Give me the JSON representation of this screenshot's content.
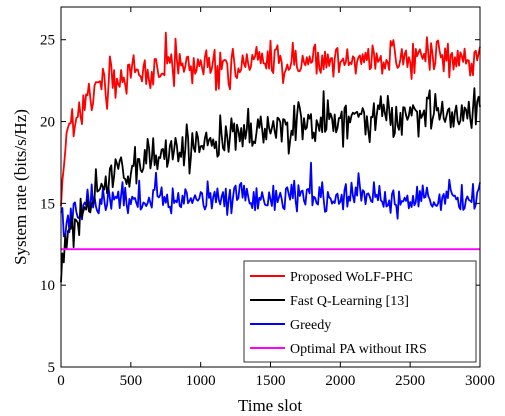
{
  "chart_data": {
    "type": "line",
    "title": "",
    "xlabel": "Time slot",
    "ylabel": "System rate (bits/s/Hz)",
    "xlim": [
      0,
      3000
    ],
    "ylim": [
      5,
      27
    ],
    "x_ticks": [
      0,
      500,
      1000,
      1500,
      2000,
      2500,
      3000
    ],
    "y_ticks": [
      5,
      10,
      15,
      20,
      25
    ],
    "grid": false,
    "legend_position": "bottom-right",
    "series": [
      {
        "name": "Proposed WoLF-PHC",
        "color": "#ff0000",
        "x": [
          0,
          20,
          40,
          60,
          80,
          100,
          150,
          200,
          300,
          400,
          500,
          600,
          700,
          800,
          900,
          1000,
          1100,
          1200,
          1300,
          1400,
          1500,
          1600,
          1700,
          1800,
          1900,
          2000,
          2100,
          2200,
          2300,
          2400,
          2500,
          2600,
          2700,
          2800,
          2900,
          3000
        ],
        "y": [
          14.8,
          17.5,
          19.5,
          20.5,
          20.0,
          20.3,
          20.8,
          21.5,
          22.2,
          22.6,
          22.8,
          23.0,
          23.1,
          23.2,
          23.3,
          23.3,
          23.4,
          23.4,
          23.5,
          23.5,
          23.6,
          23.6,
          23.6,
          23.7,
          23.7,
          23.7,
          23.8,
          23.8,
          23.8,
          23.8,
          23.9,
          23.9,
          23.9,
          24.0,
          24.0,
          24.0
        ],
        "noise": 0.9
      },
      {
        "name": "Fast Q-Learning [13]",
        "color": "#000000",
        "x": [
          0,
          20,
          40,
          60,
          80,
          100,
          150,
          200,
          300,
          400,
          500,
          600,
          700,
          800,
          900,
          1000,
          1100,
          1200,
          1300,
          1400,
          1500,
          1600,
          1700,
          1800,
          1900,
          2000,
          2100,
          2200,
          2300,
          2400,
          2500,
          2600,
          2700,
          2800,
          2900,
          3000
        ],
        "y": [
          10.2,
          11.2,
          12.2,
          13.0,
          13.6,
          14.0,
          14.6,
          15.3,
          16.1,
          16.7,
          17.2,
          17.6,
          17.9,
          18.2,
          18.4,
          18.6,
          18.8,
          19.0,
          19.2,
          19.3,
          19.4,
          19.6,
          19.7,
          19.8,
          19.9,
          20.0,
          20.1,
          20.1,
          20.2,
          20.3,
          20.3,
          20.4,
          20.4,
          20.5,
          20.5,
          20.6
        ],
        "noise": 1.0
      },
      {
        "name": "Greedy",
        "color": "#0000ff",
        "x": [
          0,
          20,
          40,
          60,
          80,
          100,
          150,
          200,
          300,
          400,
          500,
          600,
          700,
          800,
          900,
          1000,
          1100,
          1200,
          1300,
          1400,
          1500,
          1600,
          1700,
          1800,
          1900,
          2000,
          2100,
          2200,
          2300,
          2400,
          2500,
          2600,
          2700,
          2800,
          2900,
          3000
        ],
        "y": [
          14.5,
          13.4,
          13.6,
          14.0,
          14.3,
          14.5,
          14.8,
          15.0,
          15.2,
          15.3,
          15.3,
          15.3,
          15.3,
          15.3,
          15.3,
          15.3,
          15.3,
          15.3,
          15.3,
          15.3,
          15.3,
          15.3,
          15.3,
          15.3,
          15.3,
          15.3,
          15.3,
          15.3,
          15.3,
          15.3,
          15.3,
          15.3,
          15.3,
          15.3,
          15.3,
          15.3
        ],
        "noise": 0.8
      },
      {
        "name": "Optimal PA without IRS",
        "color": "#ff00ff",
        "x": [
          0,
          3000
        ],
        "y": [
          12.2,
          12.2
        ],
        "noise": 0
      }
    ]
  }
}
